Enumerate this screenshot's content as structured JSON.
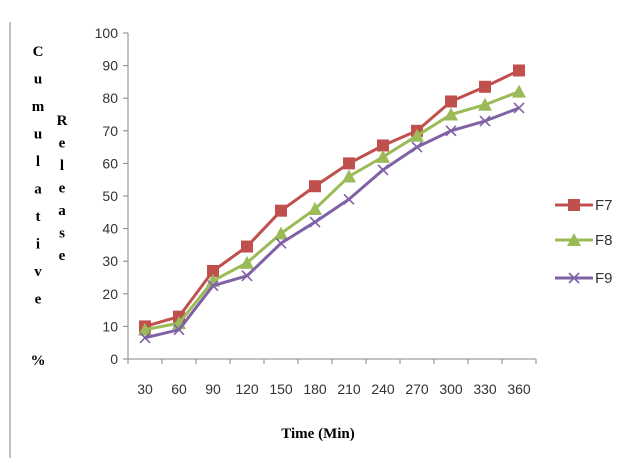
{
  "chart_data": {
    "type": "line",
    "title": "",
    "xlabel": "Time (Min)",
    "ylabel": "Cumulative % Release",
    "ylabel_columns": [
      [
        "C",
        "u",
        "m",
        "u",
        "l",
        "a",
        "t",
        "i",
        "v",
        "e",
        "%"
      ],
      [
        "R",
        "e",
        "l",
        "e",
        "a",
        "s",
        "e"
      ]
    ],
    "categories": [
      "30",
      "60",
      "90",
      "120",
      "150",
      "180",
      "210",
      "240",
      "270",
      "300",
      "330",
      "360"
    ],
    "ylim": [
      0,
      100
    ],
    "yticks": [
      "0",
      "10",
      "20",
      "30",
      "40",
      "50",
      "60",
      "70",
      "80",
      "90",
      "100"
    ],
    "grid": false,
    "legend_position": "right",
    "series": [
      {
        "name": "F7",
        "color": "#c0504d",
        "marker": "square",
        "values": [
          10,
          13,
          27,
          34.5,
          45.5,
          53,
          60,
          65.5,
          70,
          79,
          83.5,
          88.5
        ]
      },
      {
        "name": "F8",
        "color": "#9bbb59",
        "marker": "triangle",
        "values": [
          9,
          11,
          24,
          29.5,
          38.5,
          46,
          56,
          62,
          68.5,
          75,
          78,
          82
        ]
      },
      {
        "name": "F9",
        "color": "#7f61a6",
        "marker": "x",
        "values": [
          6.5,
          9,
          22.5,
          25.5,
          35.5,
          42,
          49,
          58,
          65,
          70,
          73,
          77
        ]
      }
    ]
  }
}
